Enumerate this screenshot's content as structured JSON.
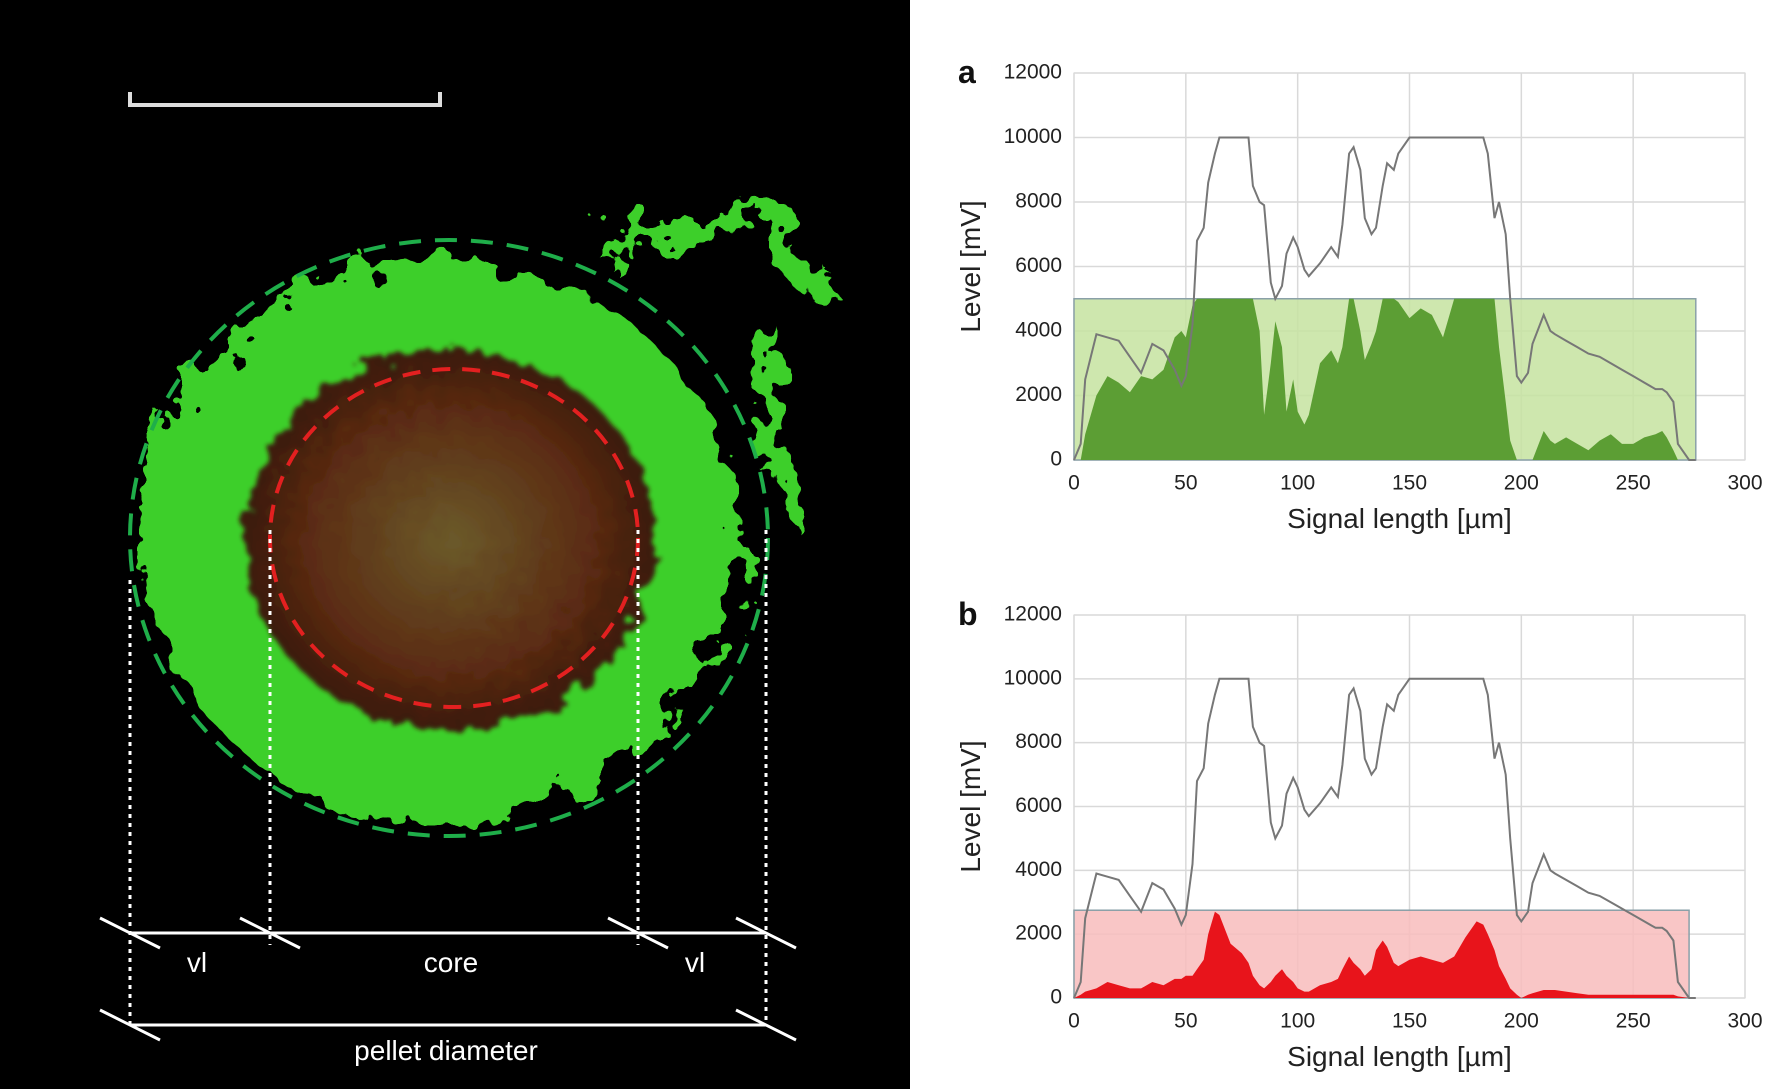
{
  "micrograph": {
    "labels": [
      "vl",
      "core",
      "vl",
      "pellet diameter"
    ]
  },
  "chart_data": [
    {
      "type": "line",
      "label": "a",
      "ylabel": "Level [mV]",
      "xlabel": "Signal length [µm]",
      "xlim": [
        0,
        300
      ],
      "ylim": [
        0,
        12000
      ],
      "xticks": [
        0,
        50,
        100,
        150,
        200,
        250,
        300
      ],
      "yticks": [
        0,
        2000,
        4000,
        6000,
        8000,
        10000,
        12000
      ],
      "grid": true,
      "band": {
        "y": 5000,
        "x": [
          0,
          278
        ],
        "color": "#c5e3a0"
      },
      "x": [
        0,
        3,
        5,
        10,
        15,
        20,
        25,
        30,
        35,
        40,
        45,
        48,
        50,
        53,
        55,
        58,
        60,
        63,
        65,
        70,
        75,
        78,
        80,
        83,
        85,
        88,
        90,
        93,
        95,
        98,
        100,
        103,
        105,
        110,
        115,
        118,
        120,
        123,
        125,
        128,
        130,
        133,
        135,
        138,
        140,
        143,
        145,
        150,
        155,
        160,
        165,
        170,
        175,
        180,
        183,
        185,
        188,
        190,
        193,
        195,
        198,
        200,
        203,
        205,
        210,
        213,
        215,
        220,
        225,
        230,
        235,
        240,
        245,
        250,
        255,
        260,
        263,
        265,
        268,
        270,
        275,
        278
      ],
      "series": [
        {
          "color": "#5c9e34",
          "area": true,
          "values": [
            0,
            0,
            800,
            2000,
            2600,
            2400,
            2100,
            2600,
            2500,
            2800,
            3800,
            4000,
            3800,
            4800,
            5000,
            5000,
            5000,
            5000,
            5000,
            5000,
            5000,
            5000,
            5000,
            4000,
            1400,
            3000,
            4300,
            3500,
            1500,
            2500,
            1500,
            1100,
            1400,
            3000,
            3400,
            3000,
            3500,
            5000,
            5000,
            4000,
            3100,
            3600,
            4000,
            5000,
            5000,
            5000,
            4900,
            4400,
            4700,
            4500,
            3800,
            5000,
            5000,
            5000,
            5000,
            5000,
            5000,
            3500,
            1800,
            600,
            0,
            0,
            0,
            0,
            900,
            600,
            500,
            700,
            500,
            300,
            600,
            800,
            500,
            500,
            700,
            800,
            900,
            700,
            300,
            0,
            0,
            0
          ]
        },
        {
          "color": "#777777",
          "area": false,
          "values": [
            0,
            500,
            2500,
            3900,
            3800,
            3700,
            3200,
            2700,
            3600,
            3400,
            2800,
            2300,
            2600,
            4200,
            6800,
            7200,
            8600,
            9500,
            10000,
            10000,
            10000,
            10000,
            8500,
            8000,
            7900,
            5500,
            5000,
            5400,
            6400,
            6900,
            6600,
            5900,
            5700,
            6100,
            6600,
            6300,
            7300,
            9500,
            9700,
            9000,
            7500,
            7000,
            7200,
            8500,
            9200,
            9000,
            9500,
            10000,
            10000,
            10000,
            10000,
            10000,
            10000,
            10000,
            10000,
            9500,
            7500,
            8000,
            7000,
            5000,
            2600,
            2400,
            2700,
            3600,
            4500,
            4000,
            3900,
            3700,
            3500,
            3300,
            3200,
            3000,
            2800,
            2600,
            2400,
            2200,
            2200,
            2100,
            1800,
            500,
            0,
            0
          ]
        }
      ]
    },
    {
      "type": "line",
      "label": "b",
      "ylabel": "Level [mV]",
      "xlabel": "Signal length [µm]",
      "xlim": [
        0,
        300
      ],
      "ylim": [
        0,
        12000
      ],
      "xticks": [
        0,
        50,
        100,
        150,
        200,
        250,
        300
      ],
      "yticks": [
        0,
        2000,
        4000,
        6000,
        8000,
        10000,
        12000
      ],
      "grid": true,
      "band": {
        "y": 2750,
        "x": [
          0,
          275
        ],
        "color": "#f8bcbc"
      },
      "x": [
        0,
        3,
        5,
        10,
        15,
        20,
        25,
        30,
        35,
        40,
        45,
        48,
        50,
        53,
        55,
        58,
        60,
        63,
        65,
        70,
        75,
        78,
        80,
        83,
        85,
        88,
        90,
        93,
        95,
        98,
        100,
        103,
        105,
        110,
        115,
        118,
        120,
        123,
        125,
        128,
        130,
        133,
        135,
        138,
        140,
        143,
        145,
        150,
        155,
        160,
        165,
        170,
        175,
        180,
        183,
        185,
        188,
        190,
        193,
        195,
        198,
        200,
        203,
        205,
        210,
        213,
        215,
        220,
        225,
        230,
        235,
        240,
        245,
        250,
        255,
        260,
        263,
        265,
        268,
        270,
        275,
        278
      ],
      "series": [
        {
          "color": "#e8141b",
          "area": true,
          "values": [
            0,
            100,
            200,
            300,
            500,
            400,
            300,
            300,
            500,
            400,
            600,
            600,
            700,
            700,
            900,
            1200,
            2000,
            2700,
            2600,
            1700,
            1400,
            1100,
            700,
            400,
            300,
            500,
            700,
            900,
            700,
            500,
            300,
            200,
            200,
            400,
            500,
            600,
            900,
            1300,
            1100,
            900,
            700,
            900,
            1500,
            1800,
            1600,
            1100,
            1000,
            1200,
            1300,
            1200,
            1100,
            1300,
            1900,
            2400,
            2300,
            2000,
            1500,
            1000,
            600,
            300,
            100,
            0,
            100,
            150,
            250,
            250,
            250,
            200,
            150,
            100,
            100,
            100,
            100,
            100,
            100,
            100,
            100,
            100,
            100,
            50,
            0,
            0
          ]
        },
        {
          "color": "#777777",
          "area": false,
          "values": [
            0,
            500,
            2500,
            3900,
            3800,
            3700,
            3200,
            2700,
            3600,
            3400,
            2800,
            2300,
            2600,
            4200,
            6800,
            7200,
            8600,
            9500,
            10000,
            10000,
            10000,
            10000,
            8500,
            8000,
            7900,
            5500,
            5000,
            5400,
            6400,
            6900,
            6600,
            5900,
            5700,
            6100,
            6600,
            6300,
            7300,
            9500,
            9700,
            9000,
            7500,
            7000,
            7200,
            8500,
            9200,
            9000,
            9500,
            10000,
            10000,
            10000,
            10000,
            10000,
            10000,
            10000,
            10000,
            9500,
            7500,
            8000,
            7000,
            5000,
            2600,
            2400,
            2700,
            3600,
            4500,
            4000,
            3900,
            3700,
            3500,
            3300,
            3200,
            3000,
            2800,
            2600,
            2400,
            2200,
            2200,
            2100,
            1800,
            500,
            0,
            0
          ]
        }
      ]
    }
  ]
}
